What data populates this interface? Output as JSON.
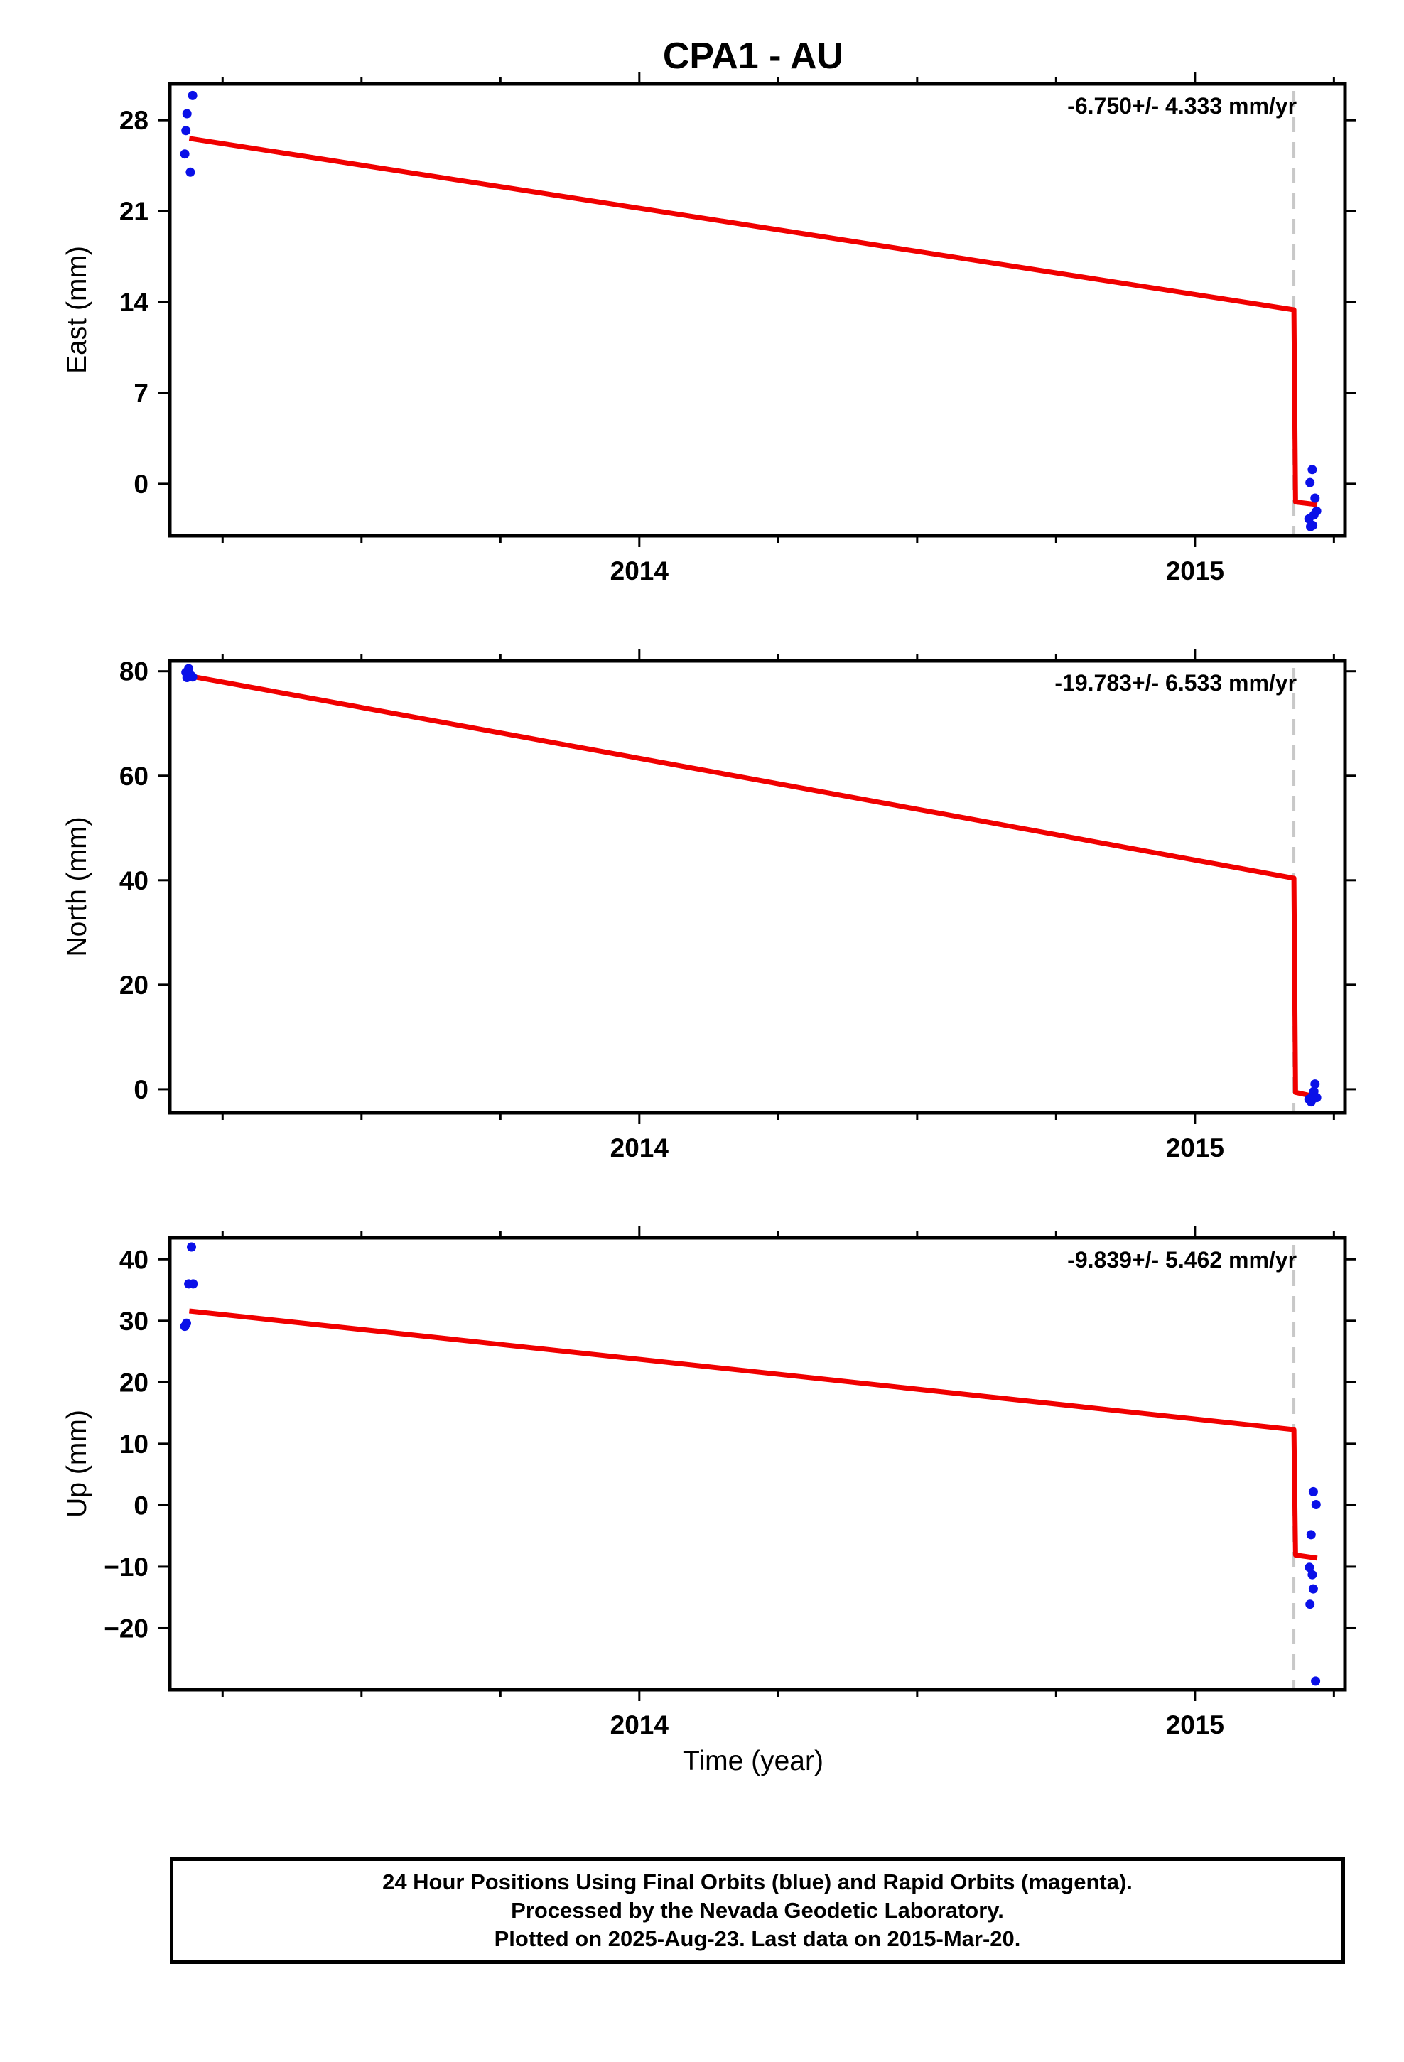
{
  "chart_data": {
    "title": "CPA1 - AU",
    "xlabel": "Time (year)",
    "panels": [
      {
        "type": "scatter",
        "ylabel": "East (mm)",
        "xlim": [
          2013.155,
          2015.27
        ],
        "ylim": [
          -4,
          30.8
        ],
        "yticks": [
          28,
          21,
          14,
          7,
          0
        ],
        "xticks": [
          2014,
          2015
        ],
        "rate_label": "-6.750+/- 4.333 mm/yr",
        "offset_epoch": 2015.178,
        "points": [
          [
            2013.196,
            29.9
          ],
          [
            2013.186,
            28.5
          ],
          [
            2013.184,
            27.2
          ],
          [
            2013.182,
            25.4
          ],
          [
            2013.192,
            24.0
          ],
          [
            2015.205,
            -2.7
          ],
          [
            2015.208,
            -3.3
          ],
          [
            2015.212,
            -3.2
          ],
          [
            2015.214,
            -2.4
          ],
          [
            2015.207,
            0.1
          ],
          [
            2015.211,
            1.1
          ],
          [
            2015.216,
            -1.1
          ],
          [
            2015.219,
            -2.1
          ]
        ],
        "model": [
          [
            2013.19,
            26.6
          ],
          [
            2015.178,
            13.4
          ],
          [
            2015.181,
            -1.4
          ],
          [
            2015.22,
            -1.6
          ]
        ]
      },
      {
        "type": "scatter",
        "ylabel": "North (mm)",
        "xlim": [
          2013.155,
          2015.27
        ],
        "ylim": [
          -4.5,
          82
        ],
        "yticks": [
          80,
          60,
          40,
          20,
          0
        ],
        "xticks": [
          2014,
          2015
        ],
        "rate_label": "-19.783+/- 6.533 mm/yr",
        "offset_epoch": 2015.178,
        "points": [
          [
            2013.184,
            79.8
          ],
          [
            2013.189,
            80.5
          ],
          [
            2013.186,
            78.8
          ],
          [
            2013.193,
            79.2
          ],
          [
            2013.196,
            78.9
          ],
          [
            2015.205,
            -1.9
          ],
          [
            2015.209,
            -2.4
          ],
          [
            2015.212,
            -1.2
          ],
          [
            2015.214,
            -0.4
          ],
          [
            2015.216,
            1.0
          ],
          [
            2015.219,
            -1.6
          ]
        ],
        "model": [
          [
            2013.19,
            79.1
          ],
          [
            2015.178,
            40.4
          ],
          [
            2015.181,
            -0.6
          ],
          [
            2015.22,
            -1.5
          ]
        ]
      },
      {
        "type": "scatter",
        "ylabel": "Up (mm)",
        "xlim": [
          2013.155,
          2015.27
        ],
        "ylim": [
          -30,
          43.5
        ],
        "yticks": [
          40,
          30,
          20,
          10,
          0,
          -10,
          -20
        ],
        "xticks": [
          2014,
          2015
        ],
        "rate_label": "-9.839+/- 5.462 mm/yr",
        "offset_epoch": 2015.178,
        "points": [
          [
            2013.194,
            42.0
          ],
          [
            2013.189,
            36.0
          ],
          [
            2013.197,
            36.0
          ],
          [
            2013.182,
            29.1
          ],
          [
            2013.185,
            29.6
          ],
          [
            2015.213,
            2.2
          ],
          [
            2015.218,
            0.1
          ],
          [
            2015.209,
            -4.8
          ],
          [
            2015.206,
            -10.1
          ],
          [
            2015.211,
            -11.3
          ],
          [
            2015.213,
            -13.6
          ],
          [
            2015.207,
            -16.1
          ],
          [
            2015.217,
            -28.6
          ]
        ],
        "model": [
          [
            2013.19,
            31.6
          ],
          [
            2015.178,
            12.3
          ],
          [
            2015.181,
            -8.1
          ],
          [
            2015.22,
            -8.6
          ]
        ]
      }
    ]
  },
  "footer": {
    "line1": "24 Hour Positions Using Final Orbits (blue) and Rapid Orbits (magenta).",
    "line2": "Processed by the Nevada Geodetic Laboratory.",
    "line3": "Plotted on 2025-Aug-23. Last data on 2015-Mar-20."
  },
  "colors": {
    "points": "#0a10e8",
    "model": "#f00000",
    "offset_line": "#c8c8c8",
    "axes": "#000000"
  }
}
